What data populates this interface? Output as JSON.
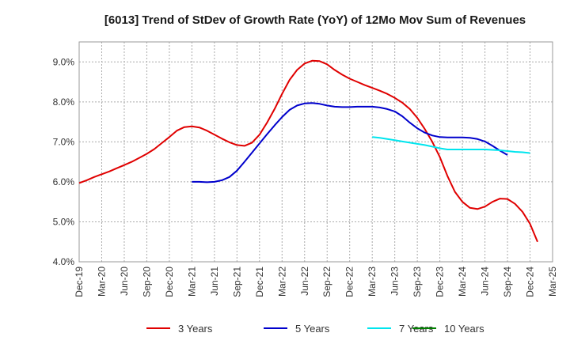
{
  "chart_data": {
    "type": "line",
    "title": "[6013]  Trend of StDev of Growth Rate (YoY) of 12Mo Mov Sum of Revenues",
    "xlabel": "",
    "ylabel": "",
    "ylim": [
      4.0,
      9.5
    ],
    "yticks": [
      4.0,
      5.0,
      6.0,
      7.0,
      8.0,
      9.0
    ],
    "ytick_labels": [
      "4.0%",
      "5.0%",
      "6.0%",
      "7.0%",
      "8.0%",
      "9.0%"
    ],
    "grid": true,
    "legend_position": "bottom",
    "x_tick_labels": [
      "Dec-19",
      "Mar-20",
      "Jun-20",
      "Sep-20",
      "Dec-20",
      "Mar-21",
      "Jun-21",
      "Sep-21",
      "Dec-21",
      "Mar-22",
      "Jun-22",
      "Sep-22",
      "Dec-22",
      "Mar-23",
      "Jun-23",
      "Sep-23",
      "Dec-23",
      "Mar-24",
      "Jun-24",
      "Sep-24",
      "Dec-24",
      "Mar-25"
    ],
    "series": [
      {
        "name": "3 Years",
        "color": "#e00000",
        "start_index": 0,
        "values": [
          5.97,
          6.04,
          6.12,
          6.19,
          6.26,
          6.34,
          6.42,
          6.5,
          6.6,
          6.7,
          6.82,
          6.97,
          7.12,
          7.28,
          7.37,
          7.39,
          7.36,
          7.28,
          7.18,
          7.08,
          6.99,
          6.92,
          6.9,
          6.98,
          7.18,
          7.48,
          7.82,
          8.2,
          8.55,
          8.8,
          8.96,
          9.03,
          9.02,
          8.94,
          8.8,
          8.68,
          8.58,
          8.5,
          8.42,
          8.35,
          8.28,
          8.2,
          8.1,
          7.98,
          7.82,
          7.6,
          7.32,
          7.0,
          6.62,
          6.15,
          5.75,
          5.5,
          5.35,
          5.32,
          5.38,
          5.5,
          5.58,
          5.57,
          5.45,
          5.25,
          4.95,
          4.5
        ]
      },
      {
        "name": "5 Years",
        "color": "#0000cc",
        "start_index": 15,
        "values": [
          6.0,
          6.0,
          5.99,
          6.0,
          6.04,
          6.12,
          6.28,
          6.5,
          6.73,
          6.96,
          7.19,
          7.41,
          7.62,
          7.8,
          7.91,
          7.96,
          7.97,
          7.95,
          7.91,
          7.88,
          7.87,
          7.87,
          7.88,
          7.88,
          7.88,
          7.86,
          7.82,
          7.76,
          7.64,
          7.48,
          7.34,
          7.23,
          7.16,
          7.12,
          7.11,
          7.11,
          7.11,
          7.1,
          7.07,
          7.01,
          6.9,
          6.78,
          6.67
        ]
      },
      {
        "name": "7 Years",
        "color": "#00e5ee",
        "start_index": 39,
        "values": [
          7.12,
          7.1,
          7.07,
          7.04,
          7.01,
          6.98,
          6.95,
          6.92,
          6.88,
          6.84,
          6.81,
          6.81,
          6.81,
          6.81,
          6.81,
          6.81,
          6.8,
          6.79,
          6.77,
          6.75,
          6.74,
          6.72
        ]
      },
      {
        "name": "10 Years",
        "color": "#008000",
        "start_index": 0,
        "values": []
      }
    ]
  }
}
